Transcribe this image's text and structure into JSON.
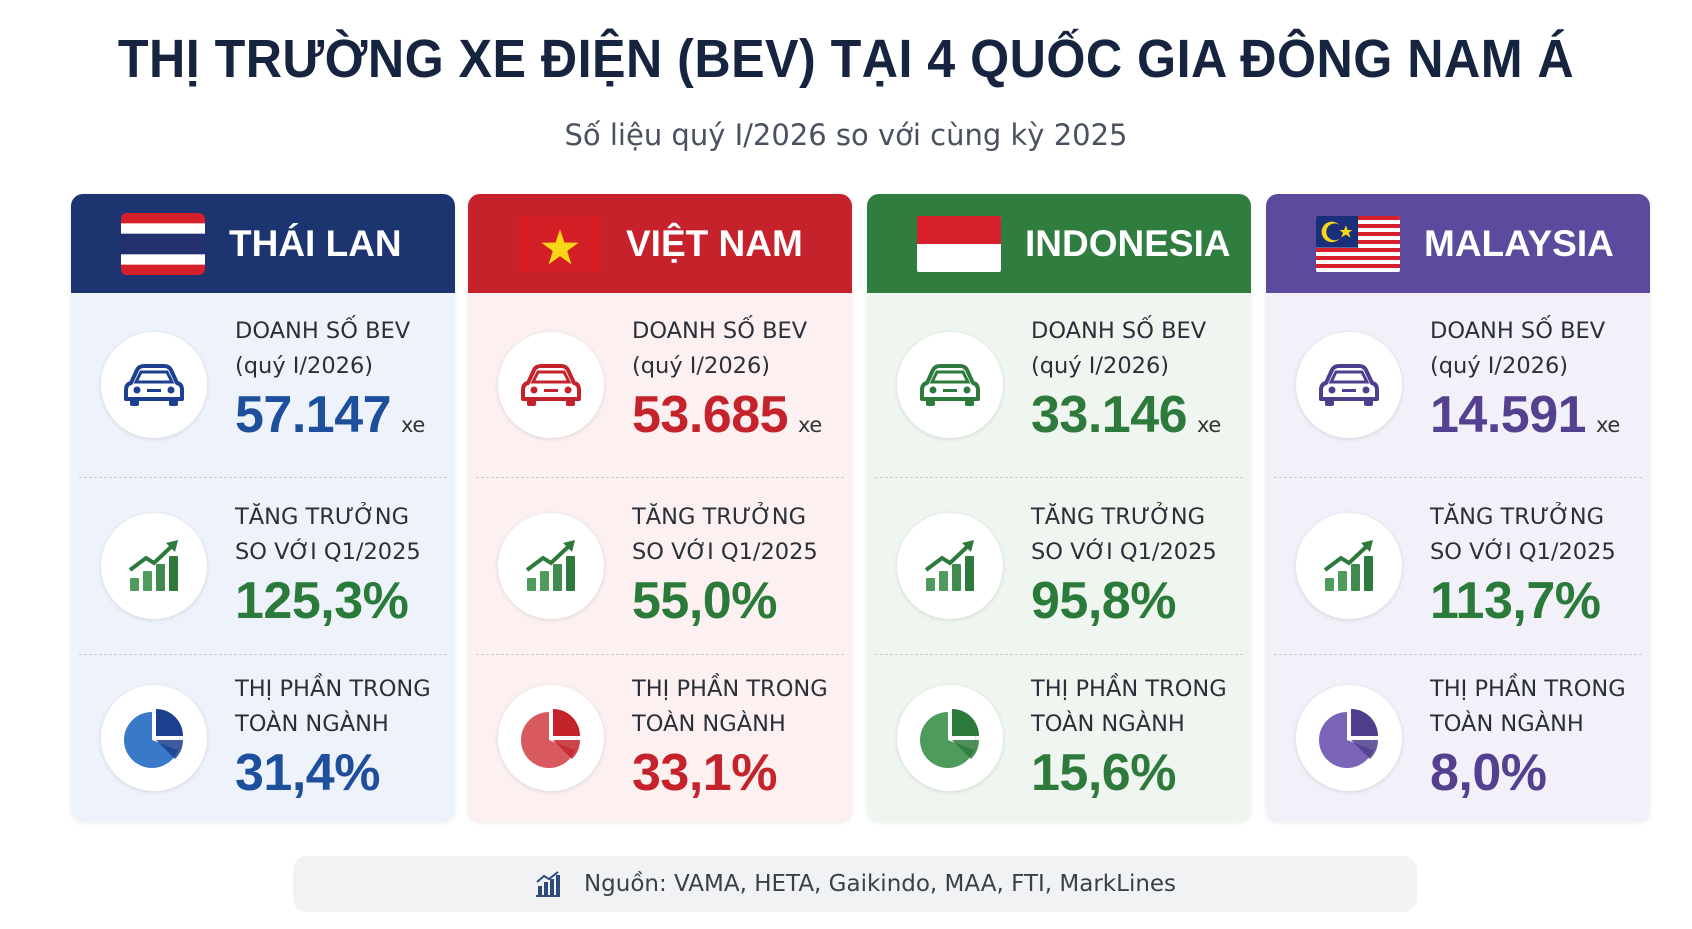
{
  "header": {
    "title": "THỊ TRƯỜNG XE ĐIỆN (BEV) TẠI 4 QUỐC GIA ĐÔNG NAM Á",
    "subtitle": "Số liệu quý I/2026 so với cùng kỳ 2025"
  },
  "cards": [
    {
      "country": "THÁI LAN",
      "metrics": [
        {
          "label": [
            "DOANH SỐ BEV",
            "(quý I/2026)"
          ],
          "value": "57.147",
          "unit": "xe"
        },
        {
          "label": [
            "TĂNG TRƯỞNG",
            "SO VỚI Q1/2025"
          ],
          "value": "125,3%"
        },
        {
          "label": [
            "THỊ PHẦN TRONG",
            "TOÀN NGÀNH"
          ],
          "value": "31,4%"
        }
      ]
    },
    {
      "country": "VIỆT NAM",
      "metrics": [
        {
          "label": [
            "DOANH SỐ BEV",
            "(quý I/2026)"
          ],
          "value": "53.685",
          "unit": "xe"
        },
        {
          "label": [
            "TĂNG TRƯỞNG",
            "SO VỚI Q1/2025"
          ],
          "value": "55,0%"
        },
        {
          "label": [
            "THỊ PHẦN TRONG",
            "TOÀN NGÀNH"
          ],
          "value": "33,1%"
        }
      ]
    },
    {
      "country": "INDONESIA",
      "metrics": [
        {
          "label": [
            "DOANH SỐ BEV",
            "(quý I/2026)"
          ],
          "value": "33.146",
          "unit": "xe"
        },
        {
          "label": [
            "TĂNG TRƯỞNG",
            "SO VỚI Q1/2025"
          ],
          "value": "95,8%"
        },
        {
          "label": [
            "THỊ PHẦN TRONG",
            "TOÀN NGÀNH"
          ],
          "value": "15,6%"
        }
      ]
    },
    {
      "country": "MALAYSIA",
      "metrics": [
        {
          "label": [
            "DOANH SỐ BEV",
            "(quý I/2026)"
          ],
          "value": "14.591",
          "unit": "xe"
        },
        {
          "label": [
            "TĂNG TRƯỞNG",
            "SO VỚI Q1/2025"
          ],
          "value": "113,7%"
        },
        {
          "label": [
            "THỊ PHẦN TRONG",
            "TOÀN NGÀNH"
          ],
          "value": "8,0%"
        }
      ]
    }
  ],
  "source": "Nguồn: VAMA, HETA, Gaikindo, MAA, FTI, MarkLines"
}
